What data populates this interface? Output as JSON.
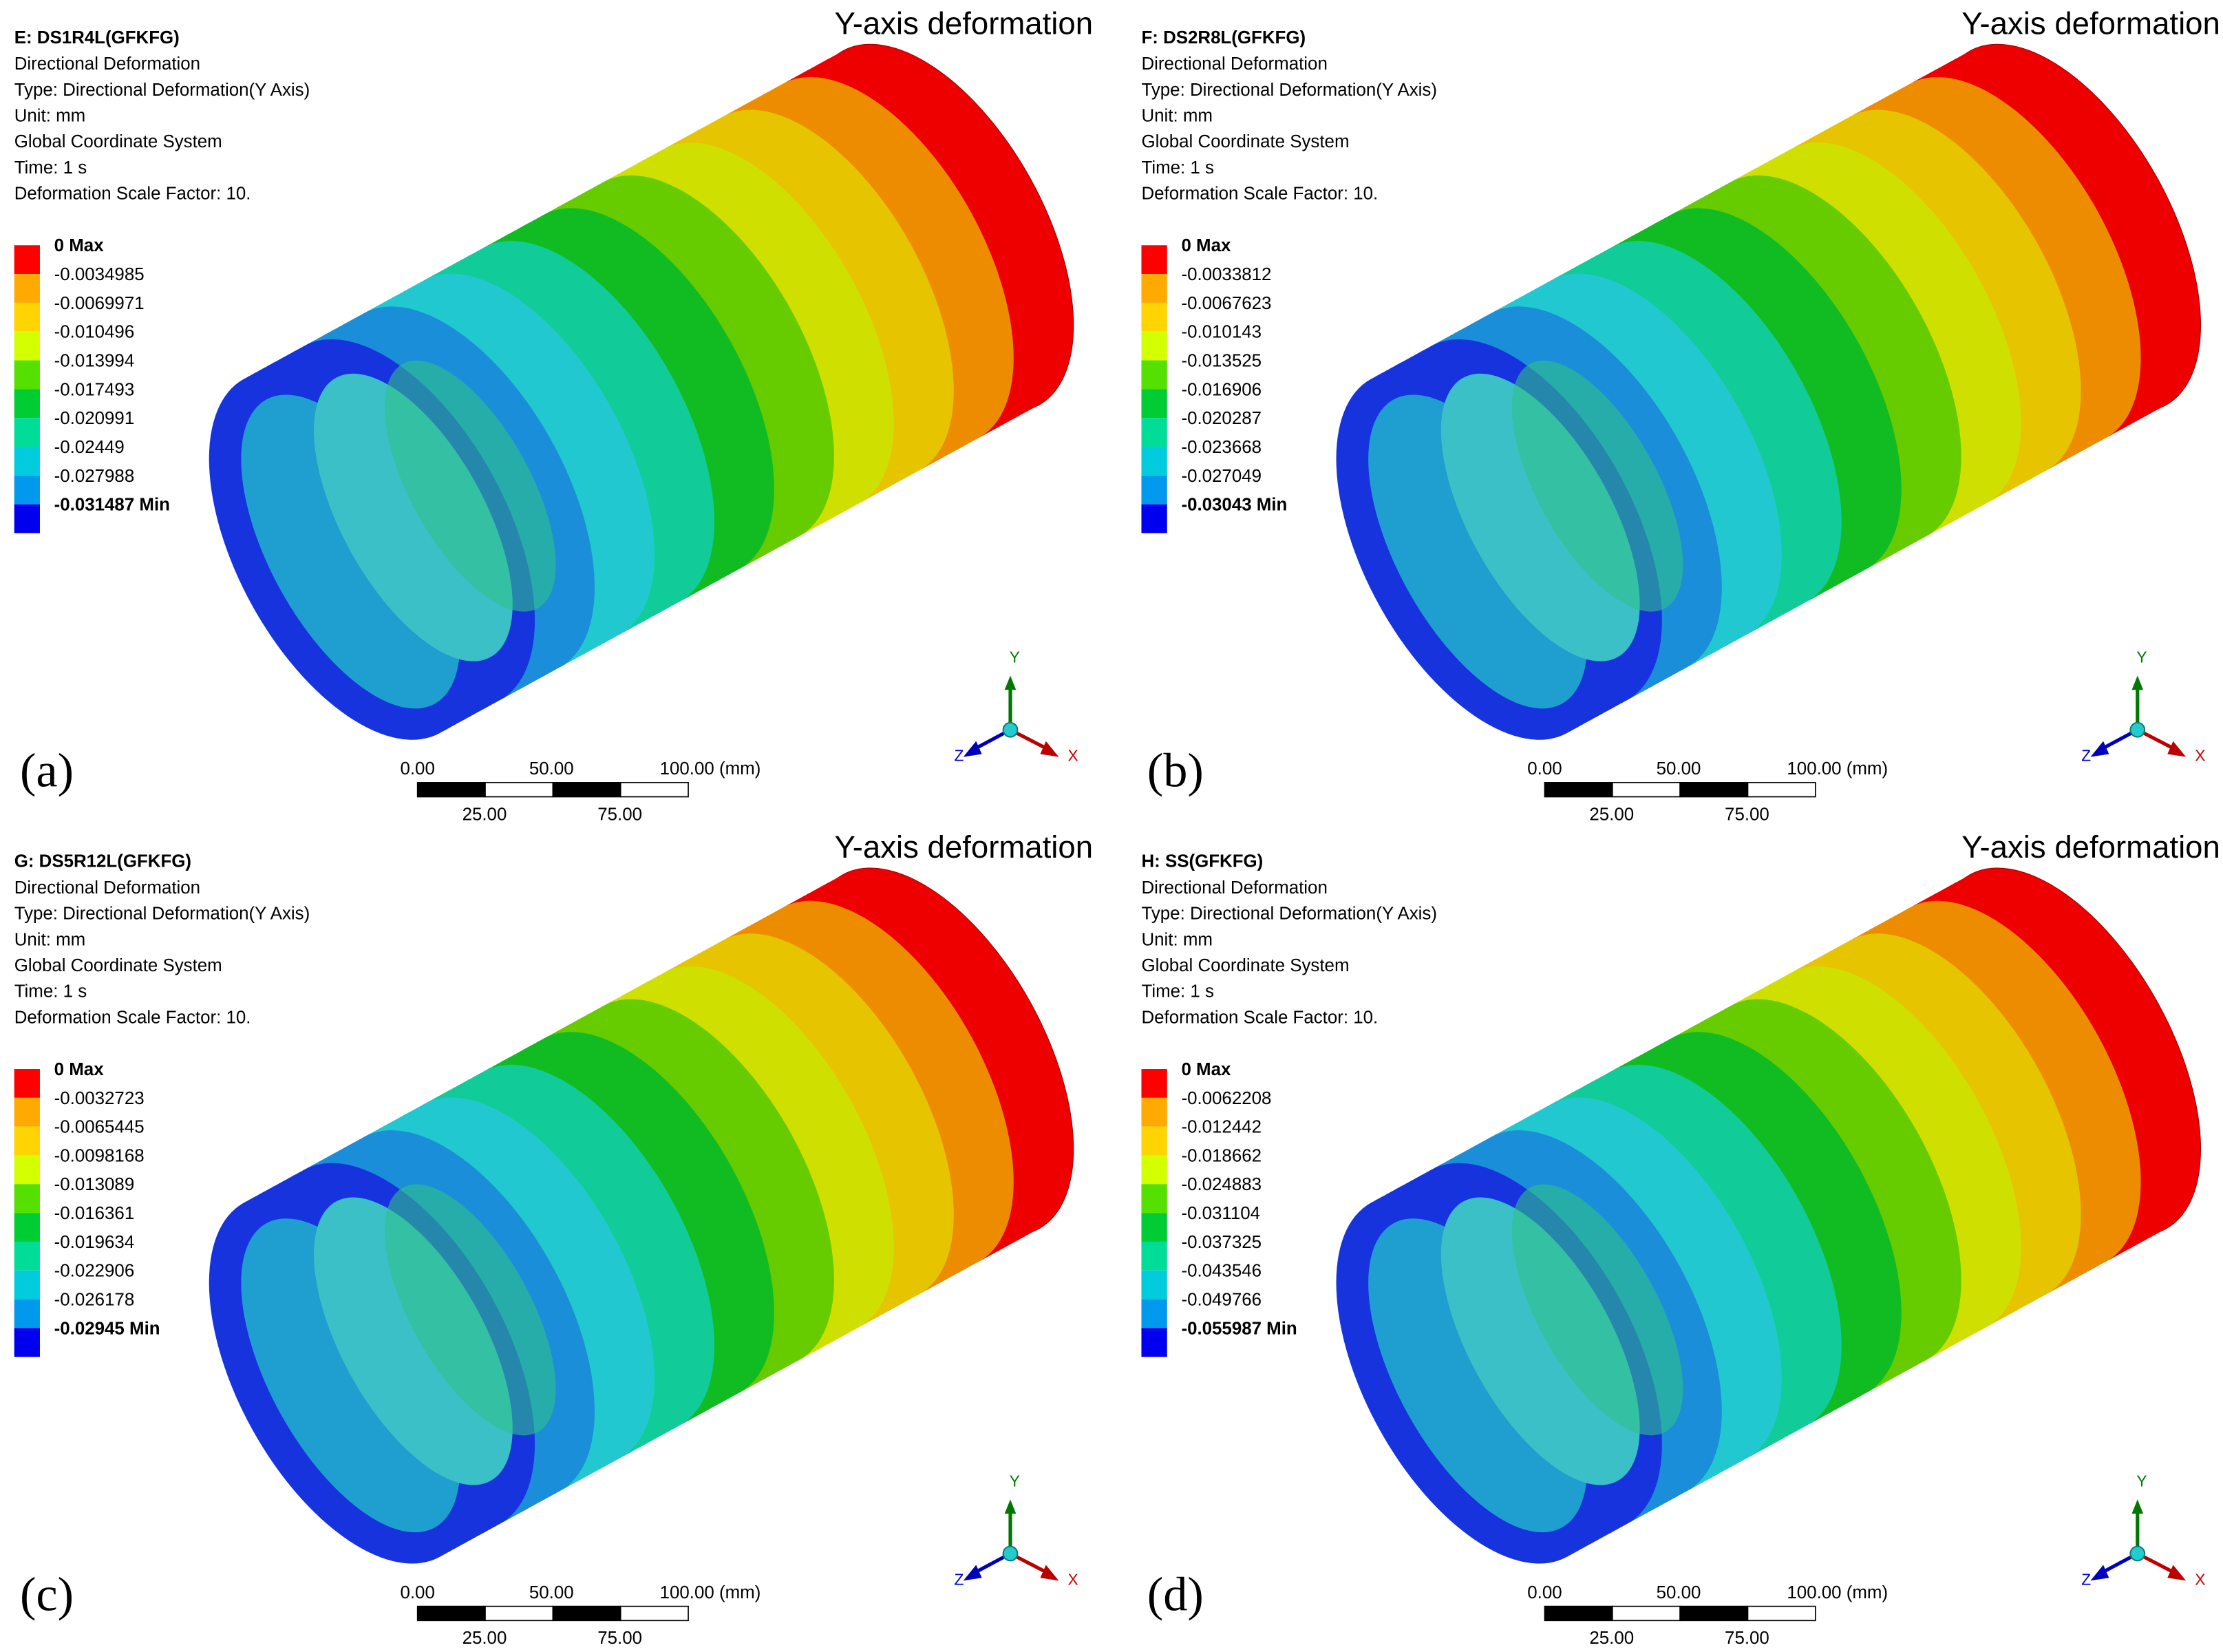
{
  "panels": [
    {
      "caption": "(a)",
      "header": "Y-axis deformation",
      "title": "E: DS1R4L(GFKFG)",
      "details": [
        "Directional Deformation",
        "Type: Directional Deformation(Y Axis)",
        "Unit: mm",
        "Global Coordinate System",
        "Time: 1 s",
        "Deformation Scale Factor: 10."
      ],
      "legend": [
        "0 Max",
        "-0.0034985",
        "-0.0069971",
        "-0.010496",
        "-0.013994",
        "-0.017493",
        "-0.020991",
        "-0.02449",
        "-0.027988",
        "-0.031487 Min"
      ],
      "scale_top": [
        "0.00",
        "50.00",
        "100.00 (mm)"
      ],
      "scale_bottom": [
        "25.00",
        "75.00"
      ],
      "axes": {
        "y": "Y",
        "x": "X",
        "z": "Z"
      }
    },
    {
      "caption": "(b)",
      "header": "Y-axis deformation",
      "title": "F: DS2R8L(GFKFG)",
      "details": [
        "Directional Deformation",
        "Type: Directional Deformation(Y Axis)",
        "Unit: mm",
        "Global Coordinate System",
        "Time: 1 s",
        "Deformation Scale Factor: 10."
      ],
      "legend": [
        "0 Max",
        "-0.0033812",
        "-0.0067623",
        "-0.010143",
        "-0.013525",
        "-0.016906",
        "-0.020287",
        "-0.023668",
        "-0.027049",
        "-0.03043 Min"
      ],
      "scale_top": [
        "0.00",
        "50.00",
        "100.00 (mm)"
      ],
      "scale_bottom": [
        "25.00",
        "75.00"
      ],
      "axes": {
        "y": "Y",
        "x": "X",
        "z": "Z"
      }
    },
    {
      "caption": "(c)",
      "header": "Y-axis deformation",
      "title": "G: DS5R12L(GFKFG)",
      "details": [
        "Directional Deformation",
        "Type: Directional Deformation(Y Axis)",
        "Unit: mm",
        "Global Coordinate System",
        "Time: 1 s",
        "Deformation Scale Factor: 10."
      ],
      "legend": [
        "0 Max",
        "-0.0032723",
        "-0.0065445",
        "-0.0098168",
        "-0.013089",
        "-0.016361",
        "-0.019634",
        "-0.022906",
        "-0.026178",
        "-0.02945 Min"
      ],
      "scale_top": [
        "0.00",
        "50.00",
        "100.00 (mm)"
      ],
      "scale_bottom": [
        "25.00",
        "75.00"
      ],
      "axes": {
        "y": "Y",
        "x": "X",
        "z": "Z"
      }
    },
    {
      "caption": "(d)",
      "header": "Y-axis deformation",
      "title": "H: SS(GFKFG)",
      "details": [
        "Directional Deformation",
        "Type: Directional Deformation(Y Axis)",
        "Unit: mm",
        "Global Coordinate System",
        "Time: 1 s",
        "Deformation Scale Factor: 10."
      ],
      "legend": [
        "0 Max",
        "-0.0062208",
        "-0.012442",
        "-0.018662",
        "-0.024883",
        "-0.031104",
        "-0.037325",
        "-0.043546",
        "-0.049766",
        "-0.055987 Min"
      ],
      "scale_top": [
        "0.00",
        "50.00",
        "100.00 (mm)"
      ],
      "scale_bottom": [
        "25.00",
        "75.00"
      ],
      "axes": {
        "y": "Y",
        "x": "X",
        "z": "Z"
      }
    }
  ]
}
